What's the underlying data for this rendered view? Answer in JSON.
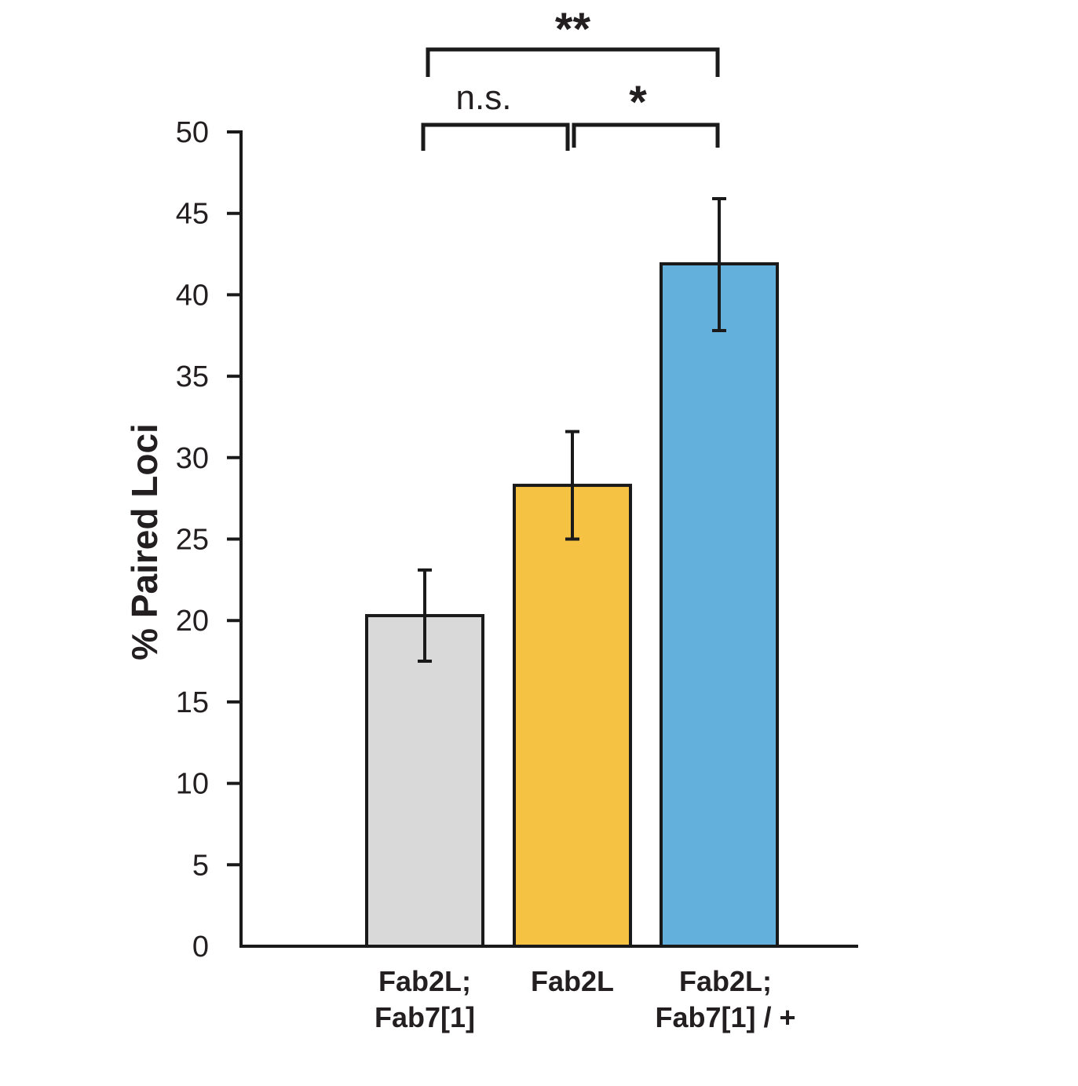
{
  "chart_data": {
    "type": "bar",
    "title": "",
    "xlabel": "",
    "ylabel": "% Paired Loci",
    "ylim": [
      0,
      50
    ],
    "yticks": [
      0,
      5,
      10,
      15,
      20,
      25,
      30,
      35,
      40,
      45,
      50
    ],
    "grid": false,
    "legend": "none",
    "categories": [
      [
        "Fab2L;",
        "Fab7[1]"
      ],
      [
        "Fab2L"
      ],
      [
        "Fab2L;",
        "Fab7[1] / +"
      ]
    ],
    "values": [
      20.3,
      28.3,
      41.9
    ],
    "error_low": [
      17.5,
      25.0,
      37.8
    ],
    "error_high": [
      23.1,
      31.6,
      45.9
    ],
    "colors": [
      "#d9d9d9",
      "#f6c243",
      "#64b0dc"
    ],
    "significance": [
      {
        "from": 0,
        "to": 1,
        "label": "n.s."
      },
      {
        "from": 1,
        "to": 2,
        "label": "*"
      },
      {
        "from": 0,
        "to": 2,
        "label": "**"
      }
    ]
  }
}
